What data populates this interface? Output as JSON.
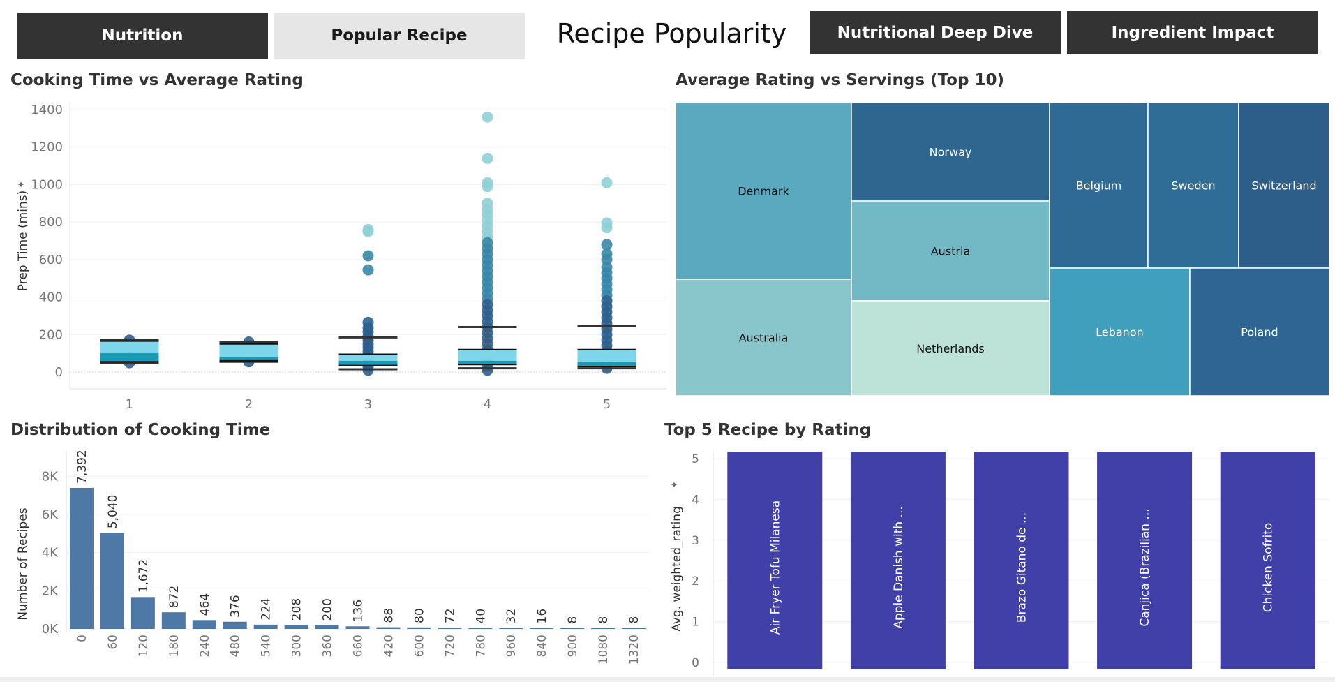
{
  "nav": {
    "buttons": [
      {
        "label": "Nutrition",
        "style": "dark"
      },
      {
        "label": "Popular Recipe",
        "style": "light"
      },
      {
        "label": "Nutritional Deep Dive",
        "style": "dark"
      },
      {
        "label": "Ingredient Impact",
        "style": "dark"
      }
    ],
    "title": "Recipe Popularity"
  },
  "colors": {
    "nav_dark": "#333333",
    "nav_light": "#e6e6e6",
    "bar_blue": "#4e79a7",
    "bar_indigo": "#4040a8",
    "box_light": "#7ed6ea",
    "box_dark": "#1a9bb5",
    "point_dark": "#2d5f8e",
    "point_light": "#8ed0d6"
  },
  "chart_data": [
    {
      "id": "boxplot",
      "type": "box",
      "title": "Cooking Time vs Average Rating",
      "xlabel": "",
      "ylabel": "Prep Time (mins)",
      "ylim": [
        0,
        1400
      ],
      "yticks": [
        0,
        200,
        400,
        600,
        800,
        1000,
        1200,
        1400
      ],
      "categories": [
        "1",
        "2",
        "3",
        "4",
        "5"
      ],
      "boxes": [
        {
          "category": "1",
          "whisker_low": 50,
          "q1": 55,
          "median": 105,
          "q3": 165,
          "whisker_high": 170
        },
        {
          "category": "2",
          "whisker_low": 55,
          "q1": 60,
          "median": 80,
          "q3": 150,
          "whisker_high": 160
        },
        {
          "category": "3",
          "whisker_low": 15,
          "q1": 35,
          "median": 60,
          "q3": 95,
          "whisker_high": 185
        },
        {
          "category": "4",
          "whisker_low": 20,
          "q1": 40,
          "median": 60,
          "q3": 120,
          "whisker_high": 240
        },
        {
          "category": "5",
          "whisker_low": 20,
          "q1": 30,
          "median": 55,
          "q3": 120,
          "whisker_high": 245
        }
      ],
      "outliers": [
        {
          "category": "1",
          "values": [
            50,
            170
          ]
        },
        {
          "category": "2",
          "values": [
            55,
            160
          ]
        },
        {
          "category": "3",
          "values": [
            760,
            750,
            620,
            545,
            265,
            235,
            215,
            190,
            170,
            150,
            130,
            110,
            90,
            70,
            50,
            30,
            10
          ]
        },
        {
          "category": "4",
          "values": [
            1360,
            1140,
            1010,
            990,
            900,
            870,
            840,
            810,
            780,
            750,
            720,
            690,
            660,
            630,
            600,
            570,
            540,
            510,
            480,
            450,
            420,
            390,
            360,
            330,
            300,
            270,
            240,
            210,
            180,
            150,
            120,
            90,
            60,
            30,
            10
          ]
        },
        {
          "category": "5",
          "values": [
            1010,
            795,
            770,
            680,
            630,
            600,
            560,
            530,
            500,
            470,
            440,
            410,
            380,
            350,
            320,
            290,
            260,
            230,
            200,
            170,
            140,
            110,
            80,
            50,
            20
          ]
        }
      ]
    },
    {
      "id": "treemap",
      "type": "treemap",
      "title": "Average Rating vs Servings (Top 10)",
      "cells": [
        {
          "label": "Denmark",
          "color": "#5aa9bf",
          "text_color": "#111111"
        },
        {
          "label": "Australia",
          "color": "#88c6cb",
          "text_color": "#111111"
        },
        {
          "label": "Norway",
          "color": "#2f6690",
          "text_color": "#ffffff"
        },
        {
          "label": "Austria",
          "color": "#72b8c5",
          "text_color": "#111111"
        },
        {
          "label": "Netherlands",
          "color": "#bde3d9",
          "text_color": "#111111"
        },
        {
          "label": "Belgium",
          "color": "#2e6a94",
          "text_color": "#ffffff"
        },
        {
          "label": "Sweden",
          "color": "#2f6c96",
          "text_color": "#ffffff"
        },
        {
          "label": "Switzerland",
          "color": "#2d5e8a",
          "text_color": "#ffffff"
        },
        {
          "label": "Lebanon",
          "color": "#409fbc",
          "text_color": "#ffffff"
        },
        {
          "label": "Poland",
          "color": "#2e6592",
          "text_color": "#ffffff"
        }
      ]
    },
    {
      "id": "histogram",
      "type": "bar",
      "title": "Distribution of Cooking Time",
      "xlabel": "",
      "ylabel": "Number of Recipes",
      "ylim": [
        0,
        9000
      ],
      "yticks": [
        0,
        2000,
        4000,
        6000,
        8000
      ],
      "ytick_labels": [
        "0K",
        "2K",
        "4K",
        "6K",
        "8K"
      ],
      "categories": [
        "0",
        "60",
        "120",
        "180",
        "240",
        "480",
        "540",
        "300",
        "360",
        "660",
        "420",
        "600",
        "720",
        "780",
        "960",
        "840",
        "900",
        "1080",
        "1320"
      ],
      "values": [
        7392,
        5040,
        1672,
        872,
        464,
        376,
        224,
        208,
        200,
        136,
        88,
        80,
        72,
        40,
        32,
        16,
        8,
        8,
        8
      ],
      "value_labels": [
        "7,392",
        "5,040",
        "1,672",
        "872",
        "464",
        "376",
        "224",
        "208",
        "200",
        "136",
        "88",
        "80",
        "72",
        "40",
        "32",
        "16",
        "8",
        "8",
        "8"
      ],
      "bar_label_min_value": 10
    },
    {
      "id": "top5",
      "type": "bar",
      "title": "Top 5 Recipe by Rating",
      "xlabel": "",
      "ylabel": "Avg. weighted_rating",
      "ylim": [
        0,
        5
      ],
      "yticks": [
        0,
        1,
        2,
        3,
        4,
        5
      ],
      "categories": [
        "Air Fryer Tofu Milanesa",
        "Apple Danish with ...",
        "Brazo Gitano de ...",
        "Canjica (Brazilian ...",
        "Chicken Sofrito"
      ],
      "values": [
        5,
        5,
        5,
        5,
        5
      ]
    }
  ]
}
